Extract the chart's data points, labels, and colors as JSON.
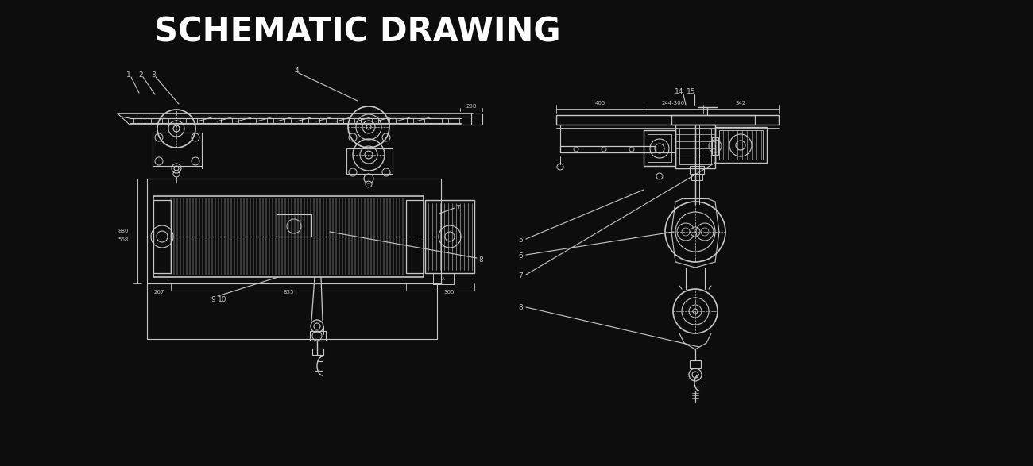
{
  "title": "SCHEMATIC DRAWING",
  "bg_color": "#0d0d0d",
  "line_color": "#c8c8c8",
  "title_color": "#ffffff",
  "title_fontsize": 30,
  "label_fontsize": 6.5,
  "dim_fontsize": 5.5
}
